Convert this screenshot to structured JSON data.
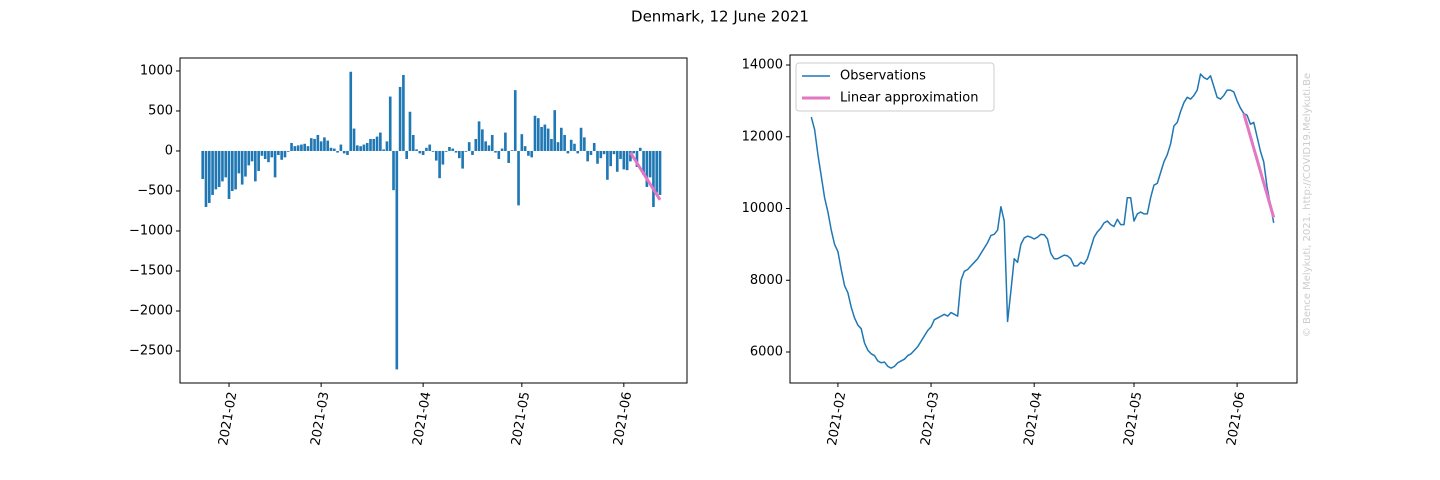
{
  "title": "Denmark, 12 June 2021",
  "watermark": "© Bence Melykuti, 2021. http://COVID19.Melykuti.Be",
  "chart_data": [
    {
      "type": "bar",
      "categories": [
        null,
        null,
        null,
        null,
        null,
        null,
        null,
        null,
        null,
        null,
        null,
        null,
        null,
        null,
        null,
        null,
        null,
        null,
        null,
        null,
        null,
        null,
        null,
        null,
        null,
        null,
        null,
        null,
        null,
        null,
        null,
        null,
        null,
        null,
        null,
        null,
        null,
        null,
        null,
        null,
        null,
        null,
        null,
        null,
        null,
        null,
        null,
        null,
        null,
        null,
        null,
        null,
        null,
        null,
        null,
        null,
        null,
        null,
        null,
        null,
        null,
        null,
        null,
        null,
        null,
        null,
        null,
        null,
        null,
        null,
        null,
        null,
        null,
        null,
        null,
        null,
        null,
        null,
        null,
        null,
        null,
        null,
        null,
        null,
        null,
        null,
        null,
        null,
        null,
        null,
        null,
        null,
        null,
        null,
        null,
        null,
        null,
        null,
        null,
        null,
        null,
        null,
        null,
        null,
        null,
        null,
        null,
        null,
        null,
        null,
        null,
        null,
        null,
        null,
        null,
        null,
        null,
        null,
        null,
        null,
        null,
        null,
        null,
        null,
        null,
        null,
        null,
        null,
        null,
        null,
        null,
        null,
        null,
        null,
        null,
        null,
        null,
        null,
        null,
        null
      ],
      "series": [
        {
          "type": "bar",
          "color": "#1f77b4",
          "values": [
            -350,
            -700,
            -650,
            -550,
            -480,
            -450,
            -380,
            -330,
            -600,
            -500,
            -480,
            -280,
            -420,
            -320,
            -180,
            -130,
            -380,
            -250,
            -60,
            -100,
            -140,
            -80,
            -330,
            -50,
            -110,
            -80,
            -10,
            100,
            60,
            70,
            80,
            90,
            60,
            160,
            150,
            200,
            120,
            170,
            130,
            40,
            30,
            -20,
            80,
            -30,
            -50,
            990,
            280,
            70,
            60,
            80,
            100,
            150,
            150,
            180,
            230,
            20,
            120,
            680,
            -490,
            -2730,
            800,
            950,
            -100,
            490,
            200,
            20,
            -30,
            -50,
            40,
            80,
            -10,
            -120,
            -340,
            -170,
            -10,
            50,
            30,
            -20,
            -90,
            -220,
            -10,
            110,
            -50,
            150,
            370,
            270,
            120,
            70,
            200,
            -20,
            -100,
            30,
            230,
            -150,
            10,
            760,
            -680,
            210,
            60,
            -60,
            -80,
            440,
            410,
            300,
            330,
            280,
            150,
            510,
            110,
            290,
            200,
            -30,
            140,
            90,
            -30,
            290,
            170,
            -130,
            -50,
            100,
            -160,
            -90,
            -40,
            -360,
            -190,
            -40,
            -260,
            -100,
            -230,
            -240,
            -130,
            -30,
            -200,
            40,
            -300,
            -450,
            -330,
            -700,
            -520,
            -550
          ]
        },
        {
          "type": "line",
          "color": "#e377c2",
          "values": [
            null,
            null,
            null,
            null,
            null,
            null,
            null,
            null,
            null,
            null,
            null,
            null,
            null,
            null,
            null,
            null,
            null,
            null,
            null,
            null,
            null,
            null,
            null,
            null,
            null,
            null,
            null,
            null,
            null,
            null,
            null,
            null,
            null,
            null,
            null,
            null,
            null,
            null,
            null,
            null,
            null,
            null,
            null,
            null,
            null,
            null,
            null,
            null,
            null,
            null,
            null,
            null,
            null,
            null,
            null,
            null,
            null,
            null,
            null,
            null,
            null,
            null,
            null,
            null,
            null,
            null,
            null,
            null,
            null,
            null,
            null,
            null,
            null,
            null,
            null,
            null,
            null,
            null,
            null,
            null,
            null,
            null,
            null,
            null,
            null,
            null,
            null,
            null,
            null,
            null,
            null,
            null,
            null,
            null,
            null,
            null,
            null,
            null,
            null,
            null,
            null,
            null,
            null,
            null,
            null,
            null,
            null,
            null,
            null,
            null,
            null,
            null,
            null,
            null,
            null,
            null,
            null,
            null,
            null,
            null,
            null,
            null,
            null,
            null,
            null,
            null,
            null,
            null,
            null,
            null,
            -20,
            -86,
            -151,
            -217,
            -282,
            -348,
            -413,
            -479,
            -544,
            -610
          ]
        }
      ],
      "xlim": [
        -6.9,
        147.2
      ],
      "xticks": [
        {
          "value": 8,
          "label": "2021-02"
        },
        {
          "value": 36,
          "label": "2021-03"
        },
        {
          "value": 67,
          "label": "2021-04"
        },
        {
          "value": 97,
          "label": "2021-05"
        },
        {
          "value": 128,
          "label": "2021-06"
        }
      ],
      "ylim": [
        -2900,
        1162
      ],
      "yticks": [
        {
          "value": 1000,
          "label": "1000"
        },
        {
          "value": 500,
          "label": "500"
        },
        {
          "value": 0,
          "label": "0"
        },
        {
          "value": -500,
          "label": "−500"
        },
        {
          "value": -1000,
          "label": "−1000"
        },
        {
          "value": -1500,
          "label": "−1500"
        },
        {
          "value": -2000,
          "label": "−2000"
        },
        {
          "value": -2500,
          "label": "−2500"
        }
      ]
    },
    {
      "type": "line",
      "categories": [
        null,
        null,
        null,
        null,
        null,
        null,
        null,
        null,
        null,
        null,
        null,
        null,
        null,
        null,
        null,
        null,
        null,
        null,
        null,
        null,
        null,
        null,
        null,
        null,
        null,
        null,
        null,
        null,
        null,
        null,
        null,
        null,
        null,
        null,
        null,
        null,
        null,
        null,
        null,
        null,
        null,
        null,
        null,
        null,
        null,
        null,
        null,
        null,
        null,
        null,
        null,
        null,
        null,
        null,
        null,
        null,
        null,
        null,
        null,
        null,
        null,
        null,
        null,
        null,
        null,
        null,
        null,
        null,
        null,
        null,
        null,
        null,
        null,
        null,
        null,
        null,
        null,
        null,
        null,
        null,
        null,
        null,
        null,
        null,
        null,
        null,
        null,
        null,
        null,
        null,
        null,
        null,
        null,
        null,
        null,
        null,
        null,
        null,
        null,
        null,
        null,
        null,
        null,
        null,
        null,
        null,
        null,
        null,
        null,
        null,
        null,
        null,
        null,
        null,
        null,
        null,
        null,
        null,
        null,
        null,
        null,
        null,
        null,
        null,
        null,
        null,
        null,
        null,
        null,
        null,
        null,
        null,
        null,
        null,
        null,
        null,
        null,
        null,
        null,
        null
      ],
      "series": [
        {
          "name": "Observations",
          "type": "line",
          "color": "#1f77b4",
          "values": [
            12550,
            12200,
            11500,
            10900,
            10300,
            9900,
            9400,
            9000,
            8800,
            8300,
            7850,
            7650,
            7250,
            6950,
            6750,
            6650,
            6250,
            6050,
            5950,
            5900,
            5750,
            5700,
            5720,
            5600,
            5550,
            5600,
            5700,
            5750,
            5800,
            5900,
            5950,
            6050,
            6150,
            6300,
            6450,
            6600,
            6700,
            6900,
            6950,
            7000,
            7050,
            7000,
            7100,
            7050,
            7000,
            8000,
            8250,
            8300,
            8400,
            8500,
            8600,
            8750,
            8900,
            9050,
            9250,
            9280,
            9400,
            10050,
            9650,
            6850,
            7700,
            8600,
            8500,
            9000,
            9180,
            9230,
            9200,
            9150,
            9200,
            9280,
            9270,
            9150,
            8750,
            8600,
            8600,
            8650,
            8700,
            8680,
            8600,
            8400,
            8400,
            8500,
            8450,
            8600,
            8900,
            9200,
            9350,
            9450,
            9600,
            9650,
            9550,
            9500,
            9700,
            9550,
            9550,
            10300,
            10300,
            9650,
            9850,
            9900,
            9850,
            9850,
            10300,
            10650,
            10700,
            11000,
            11300,
            11500,
            11800,
            12300,
            12400,
            12700,
            12950,
            13100,
            13050,
            13150,
            13300,
            13750,
            13650,
            13600,
            13700,
            13400,
            13100,
            13050,
            13150,
            13300,
            13300,
            13250,
            13000,
            12800,
            12650,
            12600,
            12350,
            12400,
            12000,
            11600,
            11300,
            10600,
            10100,
            9600
          ]
        },
        {
          "name": "Linear approximation",
          "type": "line",
          "color": "#e377c2",
          "values": [
            null,
            null,
            null,
            null,
            null,
            null,
            null,
            null,
            null,
            null,
            null,
            null,
            null,
            null,
            null,
            null,
            null,
            null,
            null,
            null,
            null,
            null,
            null,
            null,
            null,
            null,
            null,
            null,
            null,
            null,
            null,
            null,
            null,
            null,
            null,
            null,
            null,
            null,
            null,
            null,
            null,
            null,
            null,
            null,
            null,
            null,
            null,
            null,
            null,
            null,
            null,
            null,
            null,
            null,
            null,
            null,
            null,
            null,
            null,
            null,
            null,
            null,
            null,
            null,
            null,
            null,
            null,
            null,
            null,
            null,
            null,
            null,
            null,
            null,
            null,
            null,
            null,
            null,
            null,
            null,
            null,
            null,
            null,
            null,
            null,
            null,
            null,
            null,
            null,
            null,
            null,
            null,
            null,
            null,
            null,
            null,
            null,
            null,
            null,
            null,
            null,
            null,
            null,
            null,
            null,
            null,
            null,
            null,
            null,
            null,
            null,
            null,
            null,
            null,
            null,
            null,
            null,
            null,
            null,
            null,
            null,
            null,
            null,
            null,
            null,
            null,
            null,
            null,
            null,
            null,
            12650,
            12328,
            12006,
            11683,
            11361,
            11039,
            10717,
            10394,
            10072,
            9750
          ]
        }
      ],
      "legend": "upper left",
      "xlim": [
        -6.4,
        146
      ],
      "xticks": [
        {
          "value": 8,
          "label": "2021-02"
        },
        {
          "value": 36,
          "label": "2021-03"
        },
        {
          "value": 67,
          "label": "2021-04"
        },
        {
          "value": 97,
          "label": "2021-05"
        },
        {
          "value": 128,
          "label": "2021-06"
        }
      ],
      "ylim": [
        5136,
        14279
      ],
      "yticks": [
        6000,
        8000,
        10000,
        12000,
        14000
      ]
    }
  ]
}
